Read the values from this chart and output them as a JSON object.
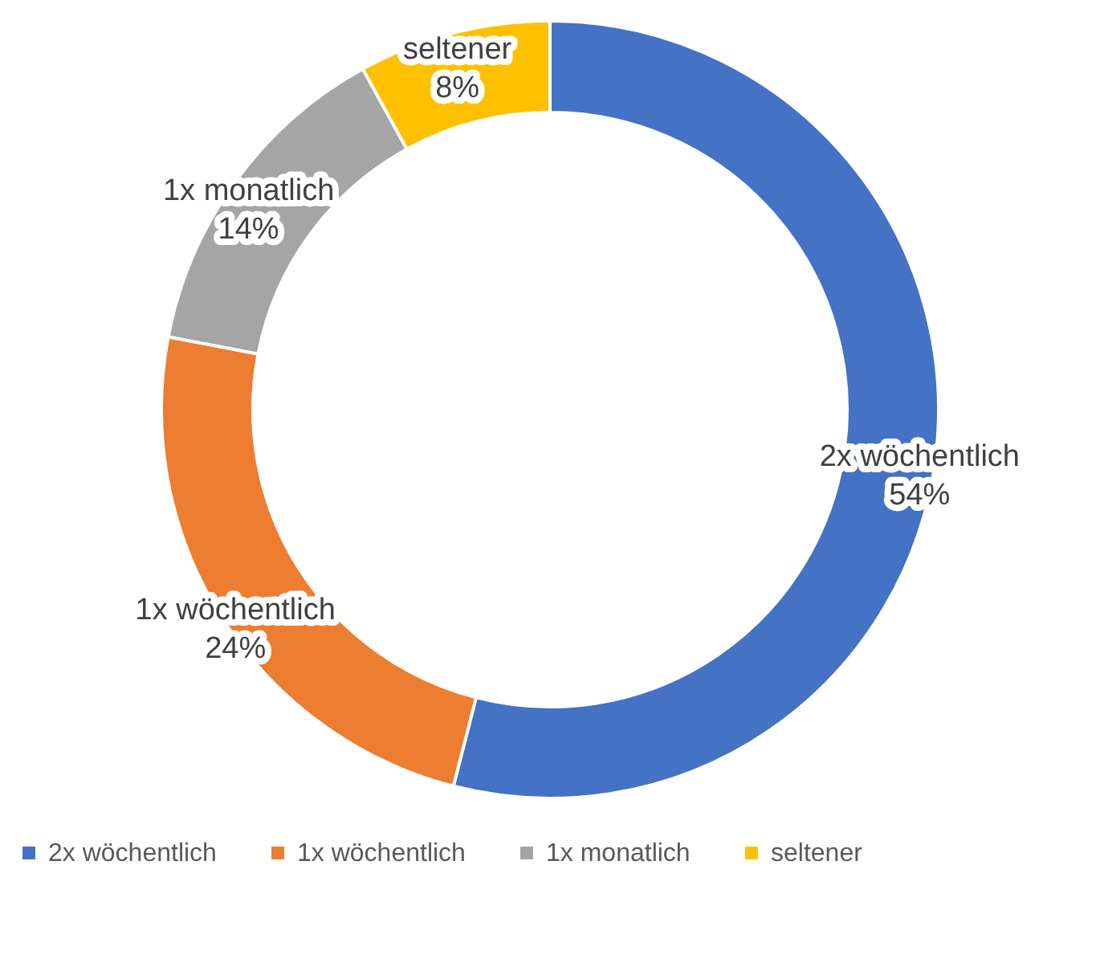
{
  "chart_data": {
    "type": "donut",
    "categories": [
      "2x wöchentlich",
      "1x wöchentlich",
      "1x monatlich",
      "seltener"
    ],
    "values": [
      54,
      24,
      14,
      8
    ],
    "colors": [
      "#4472c4",
      "#ed7d31",
      "#a5a5a5",
      "#ffc000"
    ],
    "value_labels": [
      "54%",
      "24%",
      "14%",
      "8%"
    ],
    "legend": "bottom"
  }
}
